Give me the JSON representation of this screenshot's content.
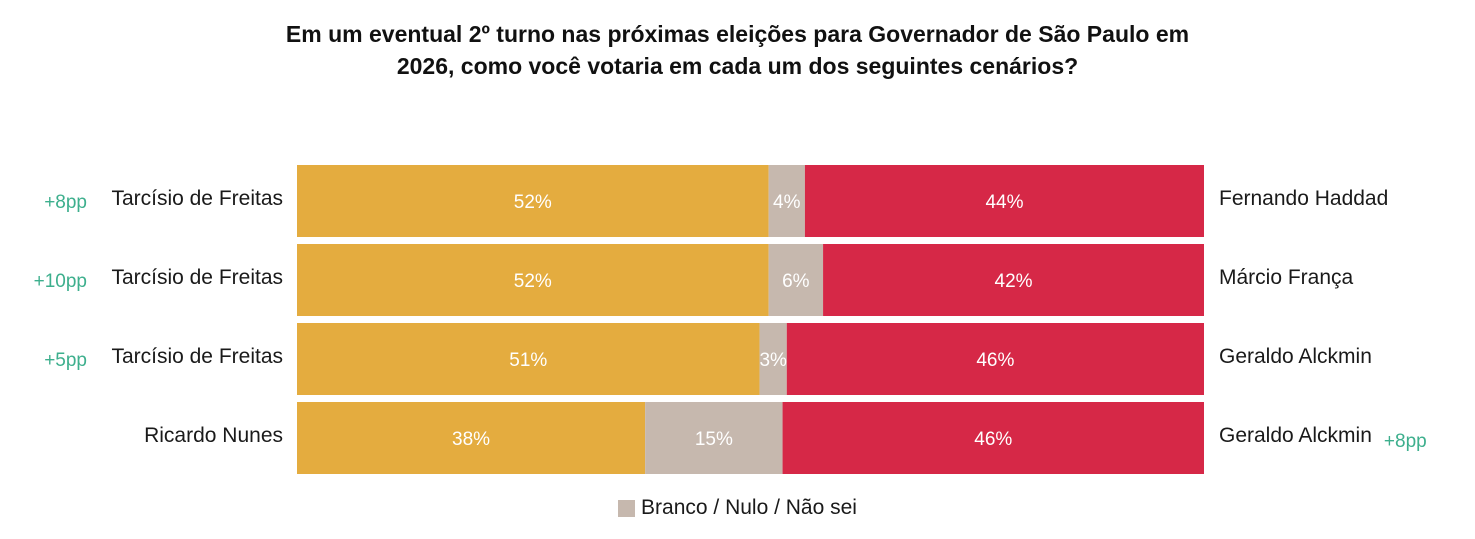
{
  "title": {
    "line1": "Em um eventual 2º turno nas próximas eleições para Governador de São Paulo em",
    "line2": "2026, como você votaria em cada um dos seguintes cenários?"
  },
  "colors": {
    "left": "#E4AC3F",
    "neutral": "#C6B8AE",
    "right": "#D62847",
    "diff": "#3DAF8D"
  },
  "legend": {
    "label": "Branco / Nulo / Não sei"
  },
  "chart_data": {
    "type": "bar",
    "orientation": "horizontal-stacked-100",
    "title": "Em um eventual 2º turno nas próximas eleições para Governador de São Paulo em 2026, como você votaria em cada um dos seguintes cenários?",
    "series": [
      {
        "name": "",
        "values": [
          52,
          52,
          51,
          38
        ]
      },
      {
        "name": "Branco / Nulo / Não sei",
        "values": [
          4,
          6,
          3,
          15
        ]
      },
      {
        "name": "",
        "values": [
          44,
          42,
          46,
          46
        ]
      }
    ],
    "rows": [
      {
        "left": "Tarcísio de Freitas",
        "right": "Fernando Haddad",
        "values": [
          52,
          4,
          44
        ],
        "labels": [
          "52%",
          "4%",
          "44%"
        ],
        "diff": "+8pp",
        "diff_side": "left"
      },
      {
        "left": "Tarcísio de Freitas",
        "right": "Márcio França",
        "values": [
          52,
          6,
          42
        ],
        "labels": [
          "52%",
          "6%",
          "42%"
        ],
        "diff": "+10pp",
        "diff_side": "left"
      },
      {
        "left": "Tarcísio de Freitas",
        "right": "Geraldo Alckmin",
        "values": [
          51,
          3,
          46
        ],
        "labels": [
          "51%",
          "3%",
          "46%"
        ],
        "diff": "+5pp",
        "diff_side": "left"
      },
      {
        "left": "Ricardo Nunes",
        "right": "Geraldo Alckmin",
        "values": [
          38,
          15,
          46
        ],
        "labels": [
          "38%",
          "15%",
          "46%"
        ],
        "diff": "+8pp",
        "diff_side": "right"
      }
    ],
    "xlim": [
      0,
      100
    ],
    "legend_position": "bottom-center",
    "grid": false
  }
}
